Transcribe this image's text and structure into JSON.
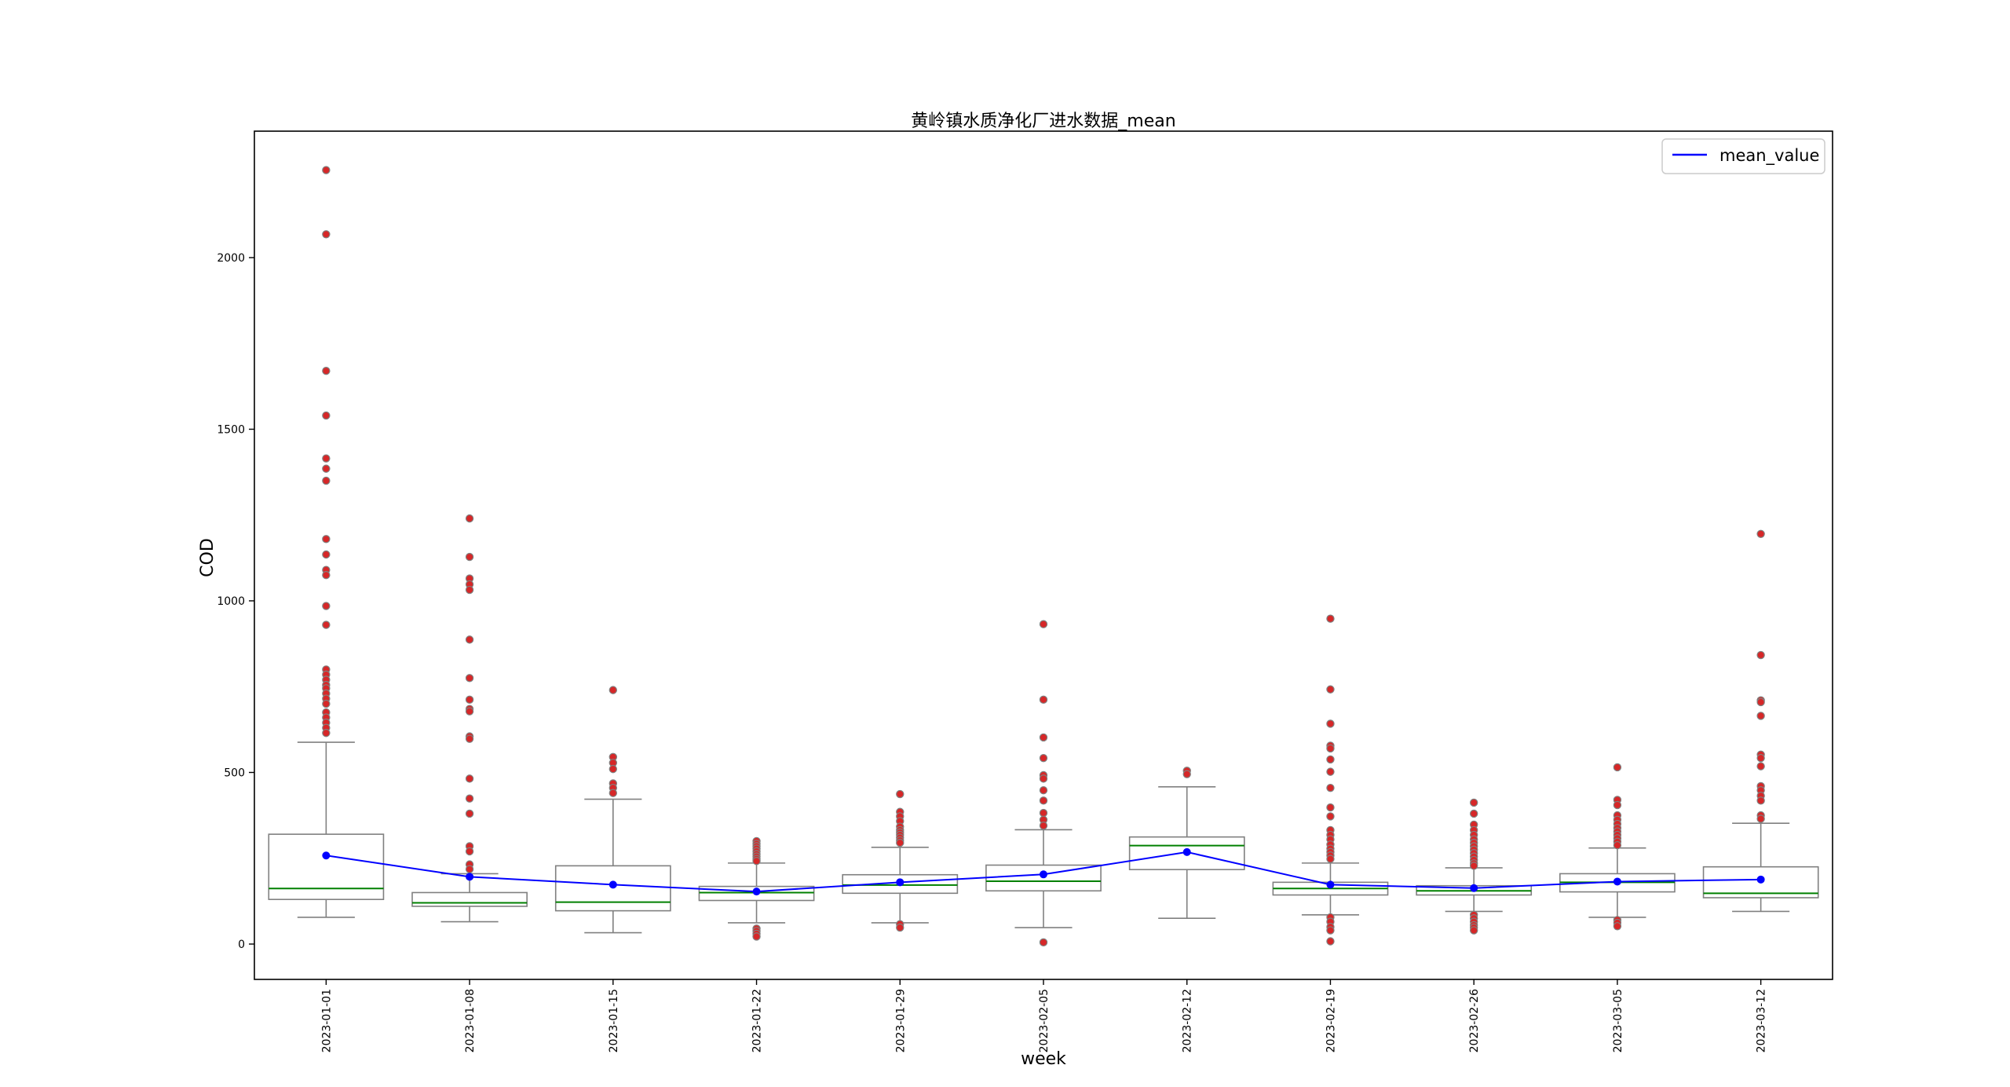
{
  "chart_data": {
    "type": "box",
    "title": "黄岭镇水质净化厂进水数据_mean",
    "xlabel": "week",
    "ylabel": "COD",
    "ylim": [
      -110,
      2350
    ],
    "yticks": [
      0,
      500,
      1000,
      1500,
      2000
    ],
    "grid": false,
    "legend": {
      "position": "top-right",
      "entries": [
        "mean_value"
      ]
    },
    "colors": {
      "box_edge": "#808080",
      "median": "#008000",
      "mean_line": "#0000ff",
      "flier": "#d62728",
      "flier_edge": "#808080",
      "axes": "#000000"
    },
    "categories": [
      "2023-01-01",
      "2023-01-08",
      "2023-01-15",
      "2023-01-22",
      "2023-01-29",
      "2023-02-05",
      "2023-02-12",
      "2023-02-19",
      "2023-02-26",
      "2023-03-05",
      "2023-03-12"
    ],
    "boxes": [
      {
        "q1": 130,
        "median": 162,
        "q3": 320,
        "whislo": 78,
        "whishi": 588,
        "fliers": [
          2255,
          2068,
          1670,
          1540,
          1415,
          1385,
          1350,
          1180,
          1135,
          1090,
          1075,
          985,
          930,
          800,
          785,
          770,
          755,
          745,
          730,
          715,
          700,
          675,
          660,
          645,
          630,
          615
        ]
      },
      {
        "q1": 110,
        "median": 120,
        "q3": 150,
        "whislo": 65,
        "whishi": 205,
        "fliers": [
          1240,
          1128,
          1065,
          1048,
          1032,
          887,
          775,
          712,
          685,
          678,
          605,
          598,
          482,
          424,
          380,
          285,
          270,
          232,
          218
        ]
      },
      {
        "q1": 97,
        "median": 122,
        "q3": 228,
        "whislo": 33,
        "whishi": 422,
        "fliers": [
          740,
          545,
          528,
          510,
          468,
          455,
          440
        ]
      },
      {
        "q1": 127,
        "median": 150,
        "q3": 168,
        "whislo": 62,
        "whishi": 236,
        "fliers": [
          300,
          292,
          285,
          278,
          270,
          262,
          255,
          248,
          242,
          45,
          38,
          30,
          22
        ]
      },
      {
        "q1": 148,
        "median": 172,
        "q3": 202,
        "whislo": 62,
        "whishi": 282,
        "fliers": [
          437,
          385,
          372,
          358,
          342,
          332,
          325,
          318,
          310,
          302,
          295,
          58,
          48
        ]
      },
      {
        "q1": 155,
        "median": 183,
        "q3": 230,
        "whislo": 48,
        "whishi": 333,
        "fliers": [
          932,
          712,
          602,
          542,
          492,
          482,
          448,
          418,
          382,
          362,
          345,
          5
        ]
      },
      {
        "q1": 217,
        "median": 287,
        "q3": 312,
        "whislo": 75,
        "whishi": 458,
        "fliers": [
          505,
          495
        ]
      },
      {
        "q1": 143,
        "median": 162,
        "q3": 180,
        "whislo": 85,
        "whishi": 236,
        "fliers": [
          948,
          742,
          642,
          578,
          570,
          538,
          502,
          455,
          398,
          372,
          332,
          318,
          305,
          290,
          278,
          268,
          258,
          248,
          78,
          65,
          50,
          40,
          8
        ]
      },
      {
        "q1": 143,
        "median": 155,
        "q3": 170,
        "whislo": 95,
        "whishi": 222,
        "fliers": [
          412,
          380,
          348,
          332,
          318,
          305,
          295,
          285,
          275,
          265,
          255,
          245,
          235,
          228,
          85,
          75,
          65,
          55,
          48,
          40
        ]
      },
      {
        "q1": 152,
        "median": 180,
        "q3": 205,
        "whislo": 78,
        "whishi": 280,
        "fliers": [
          515,
          420,
          405,
          375,
          362,
          350,
          338,
          328,
          318,
          308,
          298,
          288,
          70,
          62,
          52
        ]
      },
      {
        "q1": 135,
        "median": 148,
        "q3": 225,
        "whislo": 95,
        "whishi": 352,
        "fliers": [
          1195,
          842,
          710,
          705,
          665,
          552,
          542,
          518,
          460,
          448,
          432,
          418,
          375,
          365
        ]
      }
    ],
    "series": [
      {
        "name": "mean_value",
        "type": "line",
        "values": [
          258,
          196,
          173,
          153,
          180,
          203,
          268,
          173,
          163,
          182,
          188
        ]
      }
    ]
  }
}
